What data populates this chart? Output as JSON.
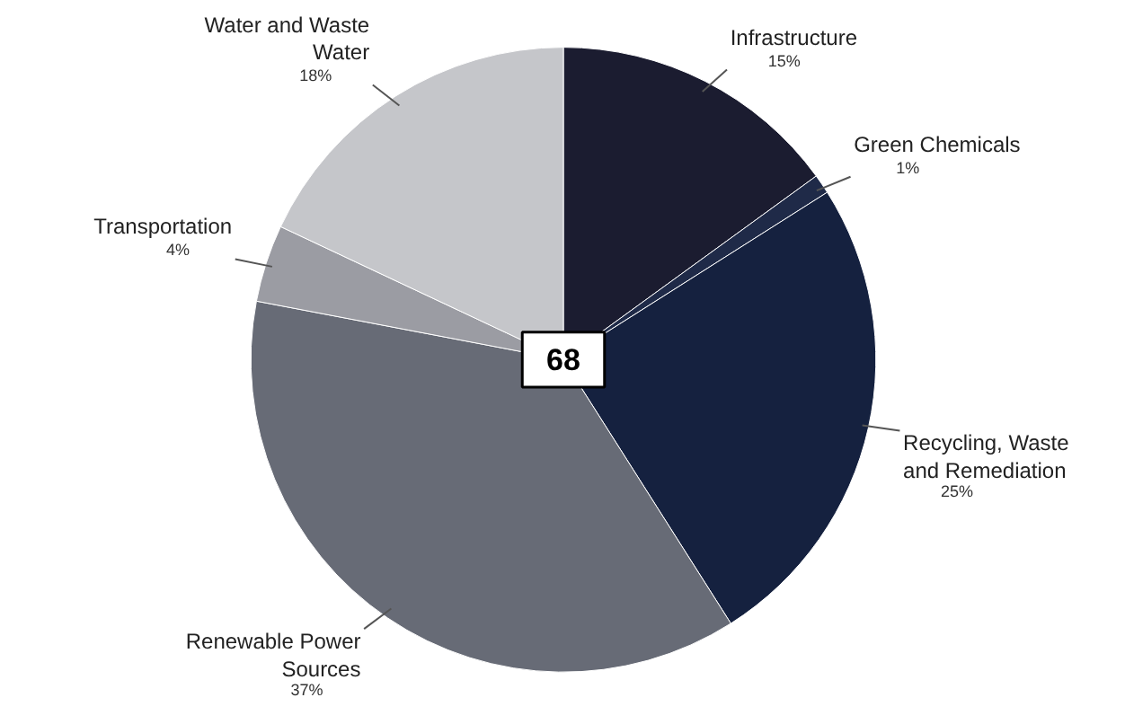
{
  "chart_data": {
    "type": "pie",
    "categories": [
      "Infrastructure",
      "Green Chemicals",
      "Recycling, Waste and Remediation",
      "Renewable Power Sources",
      "Transportation",
      "Water and Waste Water"
    ],
    "values": [
      15,
      1,
      25,
      37,
      4,
      18
    ],
    "value_labels": [
      "15%",
      "1%",
      "25%",
      "37%",
      "4%",
      "18%"
    ],
    "colors": [
      "#1b1c30",
      "#1f2a48",
      "#15213f",
      "#676b76",
      "#9b9ca3",
      "#c5c6ca"
    ],
    "annotations": [
      "68"
    ]
  }
}
